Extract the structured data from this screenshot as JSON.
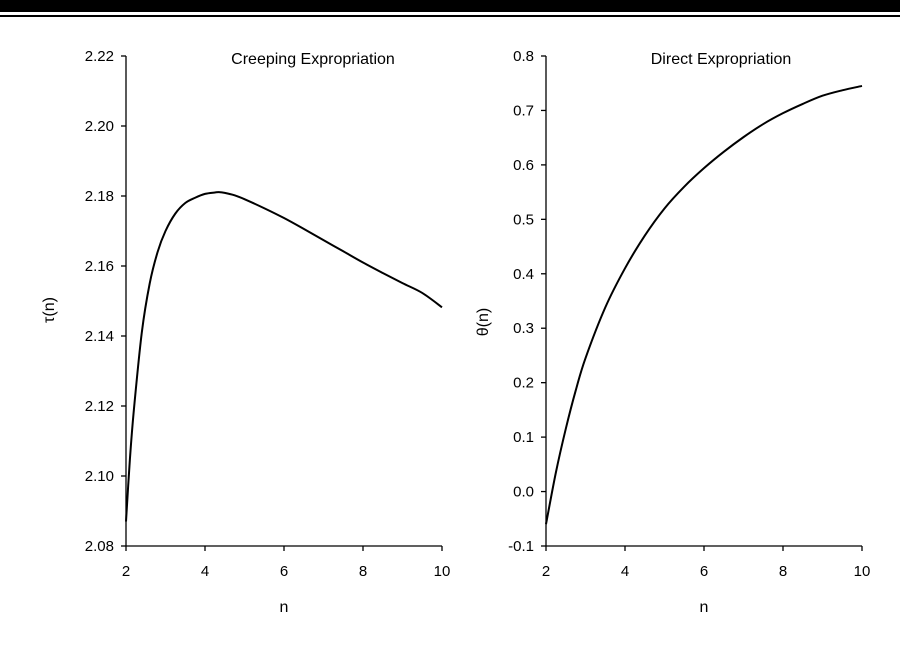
{
  "chart_data": [
    {
      "type": "line",
      "title": "Creeping Expropriation",
      "xlabel": "n",
      "ylabel": "τ(n)",
      "xlim": [
        2,
        10
      ],
      "ylim": [
        2.08,
        2.22
      ],
      "xticks": [
        "2",
        "4",
        "6",
        "8",
        "10"
      ],
      "yticks": [
        "2.22",
        "2.20",
        "2.18",
        "2.16",
        "2.14",
        "2.12",
        "2.10",
        "2.08"
      ],
      "grid": false,
      "series": [
        {
          "x": [
            2.0,
            2.1,
            2.2,
            2.4,
            2.6,
            2.8,
            3.0,
            3.25,
            3.5,
            3.75,
            4.0,
            4.25,
            4.35,
            4.5,
            4.75,
            5.0,
            5.5,
            6.0,
            6.5,
            7.0,
            7.5,
            8.0,
            8.5,
            9.0,
            9.5,
            10.0
          ],
          "values": [
            2.087,
            2.105,
            2.119,
            2.141,
            2.155,
            2.164,
            2.17,
            2.175,
            2.178,
            2.1795,
            2.1806,
            2.181,
            2.1811,
            2.1809,
            2.1802,
            2.1791,
            2.1765,
            2.1737,
            2.1706,
            2.1674,
            2.1642,
            2.161,
            2.158,
            2.1551,
            2.1523,
            2.1482
          ]
        }
      ]
    },
    {
      "type": "line",
      "title": "Direct Expropriation",
      "xlabel": "n",
      "ylabel": "θ(n)",
      "xlim": [
        2,
        10
      ],
      "ylim": [
        -0.1,
        0.8
      ],
      "xticks": [
        "2",
        "4",
        "6",
        "8",
        "10"
      ],
      "yticks": [
        "0.8",
        "0.7",
        "0.6",
        "0.5",
        "0.4",
        "0.3",
        "0.2",
        "0.1",
        "0.0",
        "-0.1"
      ],
      "grid": false,
      "series": [
        {
          "x": [
            2.0,
            2.25,
            2.5,
            2.75,
            3.0,
            3.5,
            4.0,
            4.5,
            5.0,
            5.5,
            6.0,
            6.5,
            7.0,
            7.5,
            8.0,
            8.5,
            9.0,
            9.5,
            10.0
          ],
          "values": [
            -0.06,
            0.035,
            0.115,
            0.185,
            0.245,
            0.338,
            0.41,
            0.47,
            0.52,
            0.56,
            0.594,
            0.624,
            0.651,
            0.675,
            0.695,
            0.712,
            0.727,
            0.737,
            0.745
          ]
        }
      ]
    }
  ]
}
